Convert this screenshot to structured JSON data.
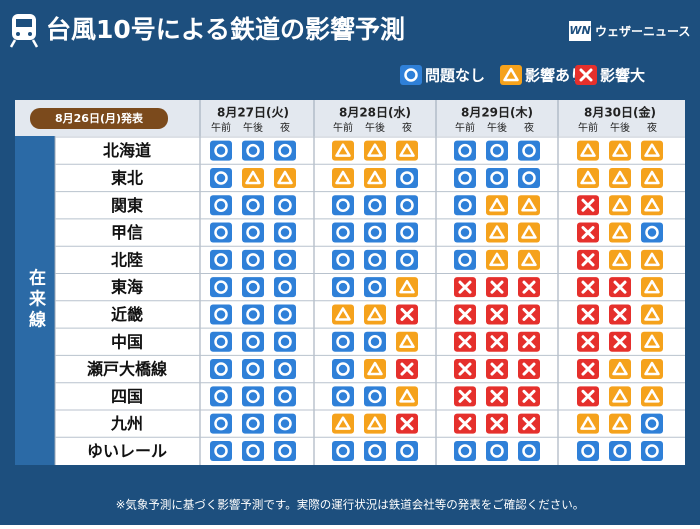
{
  "header": {
    "title": "台風10号による鉄道の影響予測",
    "logo": "WN",
    "brand": "ウェザーニュース"
  },
  "legend": [
    "問題なし",
    "影響あり",
    "影響大"
  ],
  "table": {
    "issued": "8月26日(月)発表",
    "section": "在来線",
    "days": [
      {
        "date": "8月27日(火)",
        "periods": [
          "午前",
          "午後",
          "夜"
        ]
      },
      {
        "date": "8月28日(水)",
        "periods": [
          "午前",
          "午後",
          "夜"
        ]
      },
      {
        "date": "8月29日(木)",
        "periods": [
          "午前",
          "午後",
          "夜"
        ]
      },
      {
        "date": "8月30日(金)",
        "periods": [
          "午前",
          "午後",
          "夜"
        ]
      }
    ],
    "rows": [
      {
        "name": "北海道",
        "status": [
          0,
          0,
          0,
          1,
          1,
          1,
          0,
          0,
          0,
          1,
          1,
          1
        ]
      },
      {
        "name": "東北",
        "status": [
          0,
          1,
          1,
          1,
          1,
          0,
          0,
          0,
          0,
          1,
          1,
          1
        ]
      },
      {
        "name": "関東",
        "status": [
          0,
          0,
          0,
          0,
          0,
          0,
          0,
          1,
          1,
          2,
          1,
          1
        ]
      },
      {
        "name": "甲信",
        "status": [
          0,
          0,
          0,
          0,
          0,
          0,
          0,
          1,
          1,
          2,
          1,
          0
        ]
      },
      {
        "name": "北陸",
        "status": [
          0,
          0,
          0,
          0,
          0,
          0,
          0,
          1,
          1,
          2,
          1,
          1
        ]
      },
      {
        "name": "東海",
        "status": [
          0,
          0,
          0,
          0,
          0,
          1,
          2,
          2,
          2,
          2,
          2,
          1
        ]
      },
      {
        "name": "近畿",
        "status": [
          0,
          0,
          0,
          1,
          1,
          2,
          2,
          2,
          2,
          2,
          2,
          1
        ]
      },
      {
        "name": "中国",
        "status": [
          0,
          0,
          0,
          0,
          0,
          1,
          2,
          2,
          2,
          2,
          2,
          1
        ]
      },
      {
        "name": "瀬戸大橋線",
        "status": [
          0,
          0,
          0,
          0,
          1,
          2,
          2,
          2,
          2,
          2,
          1,
          1
        ]
      },
      {
        "name": "四国",
        "status": [
          0,
          0,
          0,
          0,
          0,
          1,
          2,
          2,
          2,
          2,
          1,
          1
        ]
      },
      {
        "name": "九州",
        "status": [
          0,
          0,
          0,
          1,
          1,
          2,
          2,
          2,
          2,
          1,
          1,
          0
        ]
      },
      {
        "name": "ゆいレール",
        "status": [
          0,
          0,
          0,
          0,
          0,
          0,
          0,
          0,
          0,
          0,
          0,
          0
        ]
      }
    ]
  },
  "footer": {
    "note": "※気象予測に基づく影響予測です。実際の運行状況は鉄道会社等の発表をご確認ください。"
  }
}
